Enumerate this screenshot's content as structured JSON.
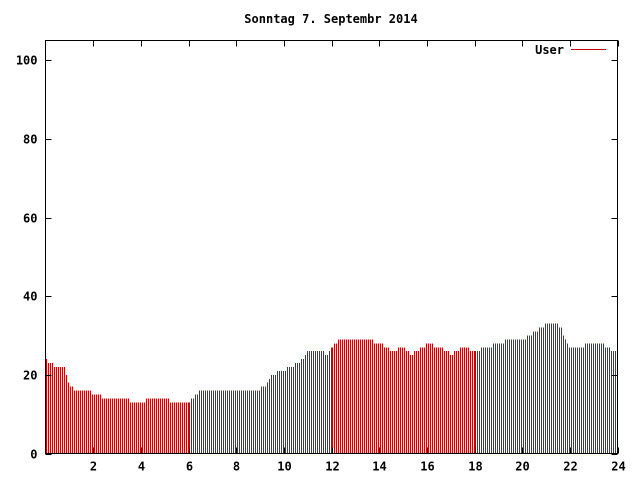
{
  "chart_data": {
    "type": "bar",
    "title": "Sonntag 7. Septembr 2014",
    "xlabel": "",
    "ylabel": "",
    "xlim": [
      0,
      24
    ],
    "ylim": [
      0,
      105
    ],
    "x_ticks": [
      2,
      4,
      6,
      8,
      10,
      12,
      14,
      16,
      18,
      20,
      22,
      24
    ],
    "y_ticks": [
      0,
      20,
      40,
      60,
      80,
      100
    ],
    "grid": false,
    "legend": "top-right",
    "series": [
      {
        "name": "User",
        "color": "#cc0000",
        "control_points": [
          [
            0,
            24
          ],
          [
            0.2,
            23
          ],
          [
            0.4,
            22
          ],
          [
            0.8,
            22
          ],
          [
            0.9,
            19
          ],
          [
            1.0,
            17
          ],
          [
            1.3,
            16
          ],
          [
            1.8,
            16
          ],
          [
            2.1,
            15
          ],
          [
            2.5,
            14
          ],
          [
            3.0,
            13.5
          ],
          [
            3.5,
            13.5
          ],
          [
            4.0,
            13
          ],
          [
            4.3,
            14
          ],
          [
            5.0,
            14
          ],
          [
            5.3,
            13
          ],
          [
            6.0,
            13
          ],
          [
            6.3,
            15
          ],
          [
            6.5,
            16
          ],
          [
            7.0,
            16
          ],
          [
            7.5,
            16
          ],
          [
            8.0,
            16
          ],
          [
            8.3,
            15.5
          ],
          [
            8.8,
            16
          ],
          [
            9.2,
            17
          ],
          [
            9.5,
            20
          ],
          [
            9.9,
            21
          ],
          [
            10.2,
            22
          ],
          [
            10.6,
            23
          ],
          [
            11.0,
            26
          ],
          [
            11.5,
            26
          ],
          [
            11.8,
            25
          ],
          [
            12.0,
            27
          ],
          [
            12.3,
            29
          ],
          [
            13.0,
            29
          ],
          [
            13.5,
            29
          ],
          [
            14.0,
            28
          ],
          [
            14.5,
            26
          ],
          [
            15.0,
            27
          ],
          [
            15.3,
            25
          ],
          [
            15.6,
            26
          ],
          [
            16.0,
            28
          ],
          [
            16.5,
            27
          ],
          [
            17.0,
            25
          ],
          [
            17.5,
            27
          ],
          [
            18.0,
            26
          ],
          [
            18.5,
            27
          ],
          [
            19.0,
            28
          ],
          [
            19.5,
            29
          ],
          [
            20.0,
            29
          ],
          [
            20.3,
            30
          ],
          [
            20.6,
            31
          ],
          [
            21.0,
            33
          ],
          [
            21.4,
            33
          ],
          [
            21.6,
            32
          ],
          [
            21.8,
            29
          ],
          [
            22.0,
            27
          ],
          [
            22.4,
            27
          ],
          [
            22.8,
            28
          ],
          [
            23.2,
            28
          ],
          [
            23.6,
            27
          ],
          [
            24.0,
            25
          ]
        ]
      }
    ]
  }
}
